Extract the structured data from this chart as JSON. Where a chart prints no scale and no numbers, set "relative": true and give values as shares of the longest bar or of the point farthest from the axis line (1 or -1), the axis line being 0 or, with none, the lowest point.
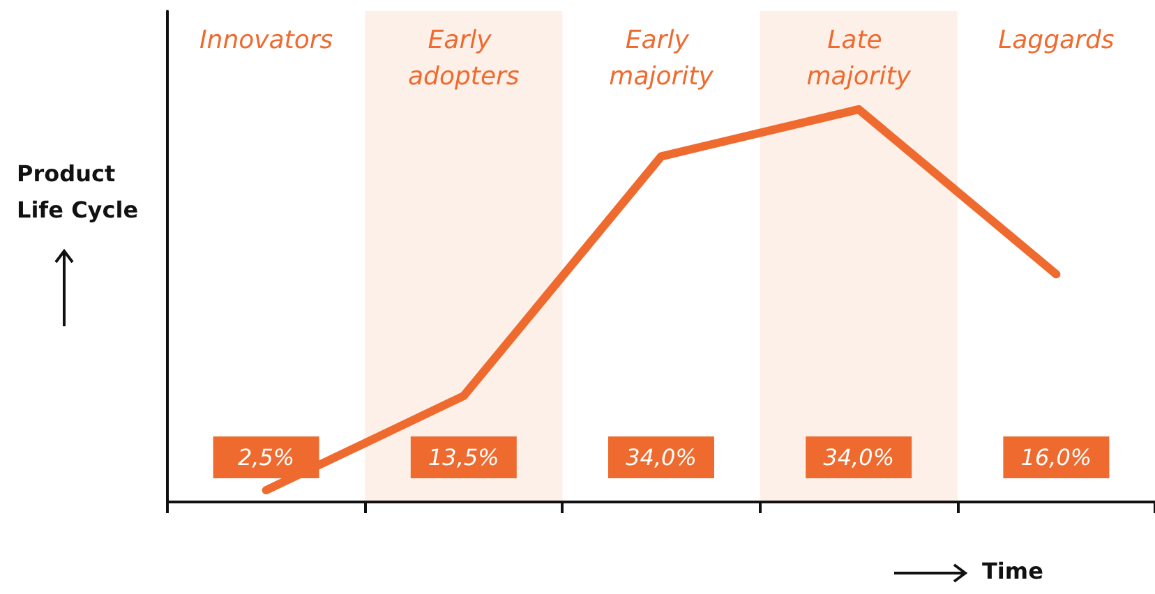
{
  "chart_data": {
    "type": "line",
    "relative": true,
    "xlabel": "Time",
    "ylabel": "Product Life Cycle",
    "categories": [
      "Innovators",
      "Early adopters",
      "Early majority",
      "Late majority",
      "Laggards"
    ],
    "series": [
      {
        "color": "#ef6a2e",
        "values": [
          0.03,
          0.27,
          0.88,
          1,
          0.58
        ]
      }
    ],
    "bands": [
      {
        "axis": "x",
        "from": "Early adopters",
        "to": "Early adopters",
        "color": "#fdf0e8"
      },
      {
        "axis": "x",
        "from": "Late majority",
        "to": "Late majority",
        "color": "#fdf0e8"
      }
    ],
    "annotations": [
      "2,5%",
      "13,5%",
      "34,0%",
      "34,0%",
      "16,0%"
    ],
    "grid": false,
    "marker": "none",
    "line_style": "solid"
  }
}
